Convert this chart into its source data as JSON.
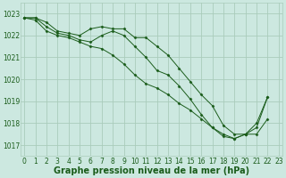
{
  "title": "Graphe pression niveau de la mer (hPa)",
  "background_color": "#cce8e0",
  "grid_color": "#aaccbb",
  "line_color": "#1a5c1a",
  "marker_color": "#1a5c1a",
  "x_ticks": [
    0,
    1,
    2,
    3,
    4,
    5,
    6,
    7,
    8,
    9,
    10,
    11,
    12,
    13,
    14,
    15,
    16,
    17,
    18,
    19,
    20,
    21,
    22,
    23
  ],
  "y_ticks": [
    1017,
    1018,
    1019,
    1020,
    1021,
    1022,
    1023
  ],
  "ylim": [
    1016.5,
    1023.5
  ],
  "xlim": [
    -0.3,
    23.3
  ],
  "series": [
    [
      1022.8,
      1022.8,
      1022.6,
      1022.2,
      1022.1,
      1022.0,
      1022.3,
      1022.4,
      1022.3,
      1022.3,
      1021.9,
      1021.9,
      1021.5,
      1021.1,
      1020.5,
      1019.9,
      1019.3,
      1018.8,
      1017.9,
      1017.5,
      1017.5,
      1017.8,
      1019.2,
      null
    ],
    [
      1022.8,
      1022.8,
      1022.4,
      1022.1,
      1022.0,
      1021.8,
      1021.7,
      1022.0,
      1022.2,
      1022.0,
      1021.5,
      1021.0,
      1020.4,
      1020.2,
      1019.7,
      1019.1,
      1018.4,
      1017.8,
      1017.5,
      1017.3,
      1017.5,
      1017.5,
      1018.2,
      null
    ],
    [
      1022.8,
      1022.7,
      1022.2,
      1022.0,
      1021.9,
      1021.7,
      1021.5,
      1021.4,
      1021.1,
      1020.7,
      1020.2,
      1019.8,
      1019.6,
      1019.3,
      1018.9,
      1018.6,
      1018.2,
      1017.8,
      1017.4,
      1017.3,
      1017.5,
      1018.0,
      1019.2,
      null
    ]
  ],
  "title_fontsize": 7,
  "tick_fontsize": 5.5,
  "font_color": "#1a5c1a"
}
